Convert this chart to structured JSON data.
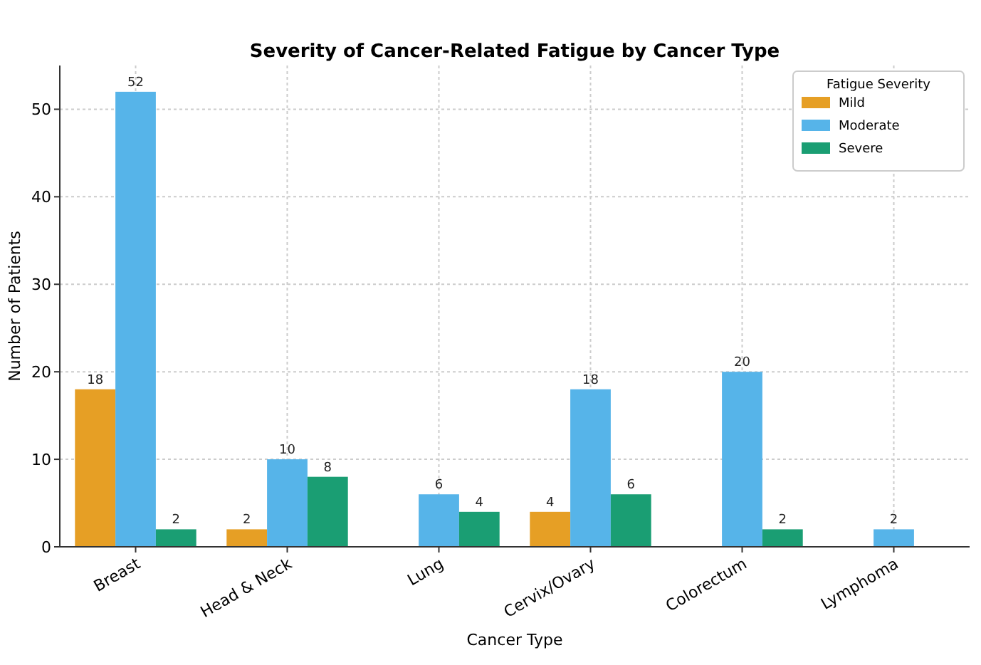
{
  "chart_data": {
    "type": "bar",
    "title": "Severity of Cancer-Related Fatigue by Cancer Type",
    "xlabel": "Cancer Type",
    "ylabel": "Number of Patients",
    "legend_title": "Fatigue Severity",
    "categories": [
      "Breast",
      "Head & Neck",
      "Lung",
      "Cervix/Ovary",
      "Colorectum",
      "Lymphoma"
    ],
    "series": [
      {
        "name": "Mild",
        "color": "#e69f25",
        "values": [
          18,
          2,
          null,
          4,
          null,
          null
        ]
      },
      {
        "name": "Moderate",
        "color": "#56b4e9",
        "values": [
          52,
          10,
          6,
          18,
          20,
          2
        ]
      },
      {
        "name": "Severe",
        "color": "#1a9e73",
        "values": [
          2,
          8,
          4,
          6,
          2,
          null
        ]
      }
    ],
    "ylim": [
      0,
      55
    ],
    "yticks": [
      0,
      10,
      20,
      30,
      40,
      50
    ],
    "grid": true,
    "legend": "top right",
    "data_labels": true
  }
}
